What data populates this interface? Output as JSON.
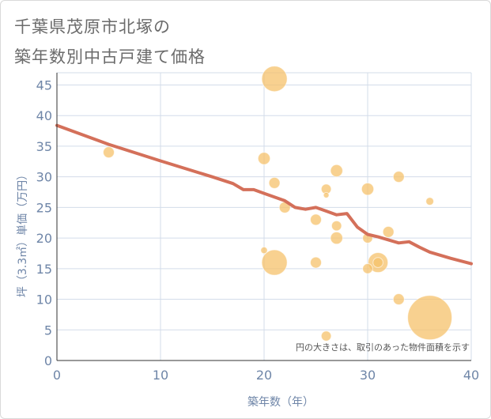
{
  "page": {
    "title_line1": "千葉県茂原市北塚の",
    "title_line2": "築年数別中古戸建て価格"
  },
  "chart_data": {
    "type": "scatter",
    "xlabel": "築年数（年）",
    "ylabel": "坪（3.3㎡）単価（万円）",
    "xlim": [
      0,
      40
    ],
    "ylim": [
      0,
      47
    ],
    "xticks": [
      0,
      10,
      20,
      30,
      40
    ],
    "yticks": [
      0,
      5,
      10,
      15,
      20,
      25,
      30,
      35,
      40,
      45
    ],
    "annotation": "円の大きさは、取引のあった物件面積を示す",
    "grid": true,
    "colors": {
      "bubble": "#f5c26b",
      "trend": "#d4705a",
      "axis_text": "#6f86a8",
      "grid": "#d3dcea"
    },
    "bubbles": [
      {
        "x": 5,
        "y": 34,
        "size": 1.0
      },
      {
        "x": 20,
        "y": 33,
        "size": 1.1
      },
      {
        "x": 20,
        "y": 18,
        "size": 0.6
      },
      {
        "x": 21,
        "y": 46,
        "size": 2.3
      },
      {
        "x": 21,
        "y": 29,
        "size": 1.0
      },
      {
        "x": 21,
        "y": 16,
        "size": 2.3
      },
      {
        "x": 22,
        "y": 25,
        "size": 1.0
      },
      {
        "x": 25,
        "y": 23,
        "size": 1.0
      },
      {
        "x": 25,
        "y": 16,
        "size": 1.0
      },
      {
        "x": 26,
        "y": 28,
        "size": 0.9
      },
      {
        "x": 26,
        "y": 27,
        "size": 0.5
      },
      {
        "x": 26,
        "y": 4,
        "size": 0.9
      },
      {
        "x": 27,
        "y": 31,
        "size": 1.1
      },
      {
        "x": 27,
        "y": 22,
        "size": 0.9
      },
      {
        "x": 27,
        "y": 20,
        "size": 1.1
      },
      {
        "x": 30,
        "y": 28,
        "size": 1.1
      },
      {
        "x": 30,
        "y": 20,
        "size": 0.9
      },
      {
        "x": 30,
        "y": 15,
        "size": 0.9
      },
      {
        "x": 31,
        "y": 16,
        "size": 1.8
      },
      {
        "x": 31,
        "y": 16,
        "size": 0.9
      },
      {
        "x": 32,
        "y": 21,
        "size": 1.0
      },
      {
        "x": 33,
        "y": 30,
        "size": 1.0
      },
      {
        "x": 33,
        "y": 10,
        "size": 1.0
      },
      {
        "x": 36,
        "y": 26,
        "size": 0.7
      },
      {
        "x": 36,
        "y": 7,
        "size": 4.0
      }
    ],
    "trend": [
      {
        "x": 0,
        "y": 38.4
      },
      {
        "x": 5,
        "y": 35.3
      },
      {
        "x": 10,
        "y": 32.6
      },
      {
        "x": 15,
        "y": 30.0
      },
      {
        "x": 17,
        "y": 28.9
      },
      {
        "x": 18,
        "y": 27.9
      },
      {
        "x": 19,
        "y": 27.9
      },
      {
        "x": 20,
        "y": 27.3
      },
      {
        "x": 21,
        "y": 26.7
      },
      {
        "x": 22,
        "y": 26.1
      },
      {
        "x": 23,
        "y": 25.0
      },
      {
        "x": 24,
        "y": 24.7
      },
      {
        "x": 25,
        "y": 25.0
      },
      {
        "x": 26,
        "y": 24.4
      },
      {
        "x": 27,
        "y": 23.8
      },
      {
        "x": 28,
        "y": 24.0
      },
      {
        "x": 29,
        "y": 21.8
      },
      {
        "x": 30,
        "y": 20.6
      },
      {
        "x": 31,
        "y": 20.2
      },
      {
        "x": 32,
        "y": 19.7
      },
      {
        "x": 33,
        "y": 19.2
      },
      {
        "x": 34,
        "y": 19.4
      },
      {
        "x": 35,
        "y": 18.5
      },
      {
        "x": 36,
        "y": 17.7
      },
      {
        "x": 37,
        "y": 17.2
      },
      {
        "x": 38,
        "y": 16.7
      },
      {
        "x": 40,
        "y": 15.8
      }
    ]
  }
}
